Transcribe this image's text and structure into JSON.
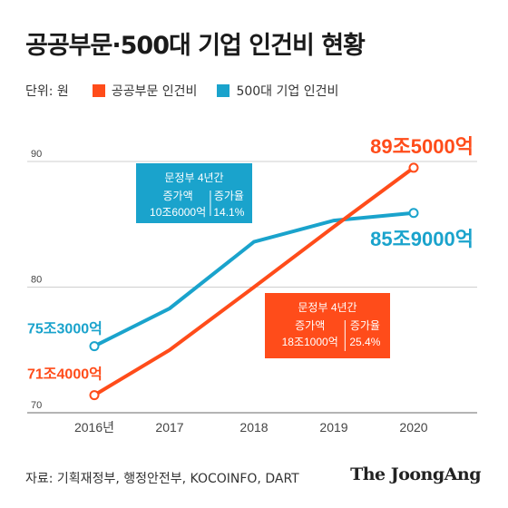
{
  "title": "공공부문·500대 기업 인건비 현황",
  "legend": {
    "unit": "단위: 원",
    "items": [
      {
        "label": "공공부문 인건비",
        "color": "#ff4c1a"
      },
      {
        "label": "500대 기업 인건비",
        "color": "#1aa3cc"
      }
    ]
  },
  "chart_data": {
    "type": "line",
    "x": [
      "2016년",
      "2017",
      "2018",
      "2019",
      "2020"
    ],
    "ylim": [
      70,
      92
    ],
    "yticks": [
      "70",
      "80",
      "90"
    ],
    "grid": true,
    "series": [
      {
        "name": "공공부문 인건비",
        "color": "#ff4c1a",
        "values": [
          71.4,
          75.0,
          80.0,
          84.8,
          89.5
        ]
      },
      {
        "name": "500대 기업 인건비",
        "color": "#1aa3cc",
        "values": [
          75.3,
          78.3,
          83.6,
          85.3,
          85.9
        ]
      }
    ],
    "end_labels": {
      "public_start": "71조4000억",
      "public_end": "89조5000억",
      "corp_start": "75조3000억",
      "corp_end": "85조9000억"
    },
    "annotations": [
      {
        "series": "공공부문 인건비",
        "heading": "문정부 4년간",
        "col1_label": "증가액",
        "col1_value": "18조1000억",
        "col2_label": "증가율",
        "col2_value": "25.4%"
      },
      {
        "series": "500대 기업 인건비",
        "heading": "문정부 4년간",
        "col1_label": "증가액",
        "col1_value": "10조6000억",
        "col2_label": "증가율",
        "col2_value": "14.1%"
      }
    ]
  },
  "footer": {
    "source": "자료: 기획재정부, 행정안전부, KOCOINFO, DART",
    "brand": "The JoongAng"
  }
}
